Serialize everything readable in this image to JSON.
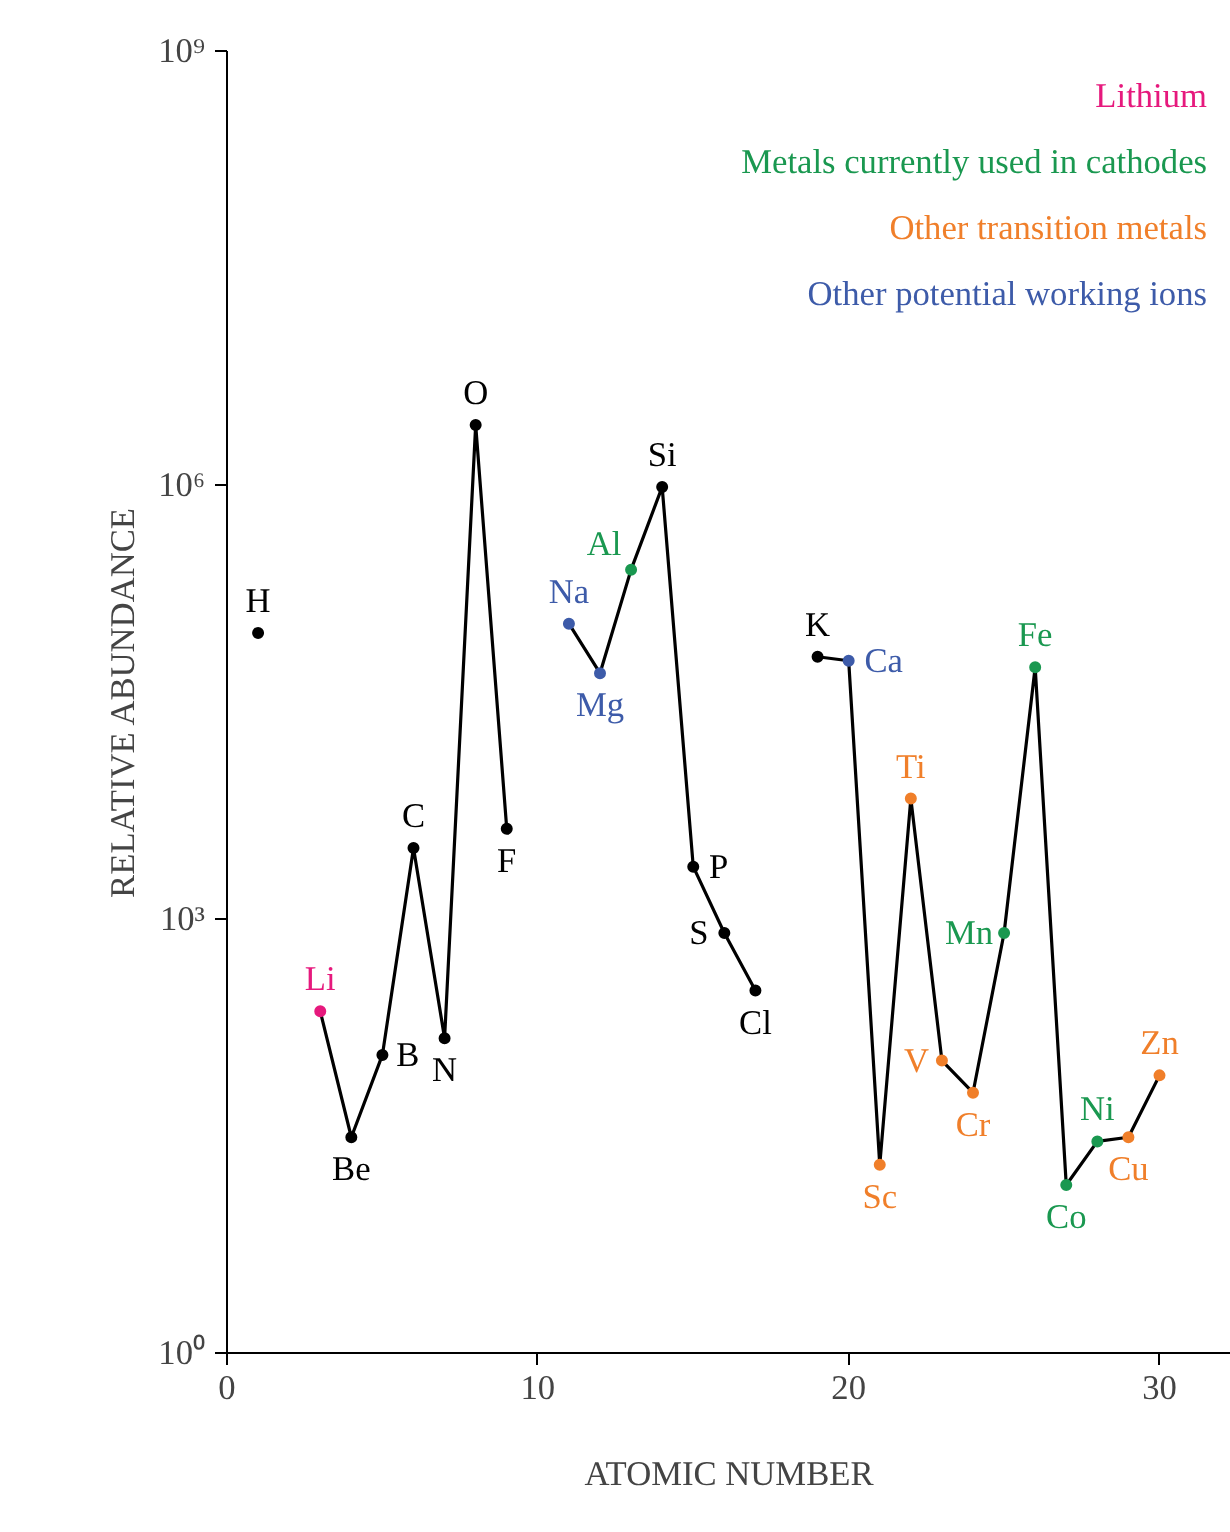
{
  "chart_data": {
    "type": "scatter",
    "xlabel": "ATOMIC NUMBER",
    "ylabel": "RELATIVE ABUNDANCE",
    "log": "y",
    "xlim": [
      0,
      32.3
    ],
    "ylim": [
      1,
      1000000000
    ],
    "xticks": [
      0,
      10,
      20,
      30
    ],
    "yticks": [
      {
        "value": 1,
        "label": "10⁰"
      },
      {
        "value": 1000,
        "label": "10³"
      },
      {
        "value": 1000000,
        "label": "10⁶"
      },
      {
        "value": 1000000000,
        "label": "10⁹"
      }
    ],
    "grid": false,
    "legend": "top right",
    "marker": "circle",
    "series": [
      {
        "type": "line",
        "color": "#000000",
        "marker": "none",
        "x": [
          3,
          4,
          5,
          6,
          7,
          8,
          9,
          10,
          11,
          12,
          13,
          14,
          15,
          16,
          17,
          18,
          19,
          20,
          21,
          22,
          23,
          24,
          25,
          26,
          27,
          28,
          29,
          30
        ],
        "values": [
          230,
          31,
          115,
          3100,
          150,
          2600000,
          4200,
          null,
          110000,
          50000,
          260000,
          970000,
          2300,
          800,
          320,
          null,
          65000,
          61000,
          20,
          6800,
          105,
          63,
          800,
          55000,
          14.5,
          29,
          31,
          83
        ]
      },
      {
        "color": "#000000",
        "x": [
          1,
          4,
          5,
          6,
          7,
          8,
          9,
          14,
          15,
          16,
          17,
          19
        ],
        "values": [
          95000,
          31,
          115,
          3100,
          150,
          2600000,
          4200,
          970000,
          2300,
          800,
          320,
          65000
        ]
      },
      {
        "name": "Lithium",
        "color": "#e6197d",
        "x": [
          3
        ],
        "values": [
          230
        ]
      },
      {
        "name": "Metals currently used in cathodes",
        "color": "#1a9850",
        "x": [
          13,
          25,
          26,
          27,
          28
        ],
        "values": [
          260000,
          800,
          55000,
          14.5,
          29
        ]
      },
      {
        "name": "Other transition metals",
        "color": "#f07f2a",
        "x": [
          21,
          22,
          23,
          24,
          29,
          30
        ],
        "values": [
          20,
          6800,
          105,
          63,
          31,
          83
        ]
      },
      {
        "name": "Other potential working ions",
        "color": "#3d5ba9",
        "x": [
          11,
          12,
          20
        ],
        "values": [
          110000,
          50000,
          61000
        ]
      }
    ],
    "annotations": [
      {
        "text": "H",
        "x": 1,
        "y": 95000
      },
      {
        "text": "Li",
        "x": 3,
        "y": 230
      },
      {
        "text": "Be",
        "x": 4,
        "y": 31
      },
      {
        "text": "B",
        "x": 5,
        "y": 115
      },
      {
        "text": "C",
        "x": 6,
        "y": 3100
      },
      {
        "text": "N",
        "x": 7,
        "y": 150
      },
      {
        "text": "O",
        "x": 8,
        "y": 2600000
      },
      {
        "text": "F",
        "x": 9,
        "y": 4200
      },
      {
        "text": "Na",
        "x": 11,
        "y": 110000
      },
      {
        "text": "Mg",
        "x": 12,
        "y": 50000
      },
      {
        "text": "Al",
        "x": 13,
        "y": 260000
      },
      {
        "text": "Si",
        "x": 14,
        "y": 970000
      },
      {
        "text": "P",
        "x": 15,
        "y": 2300
      },
      {
        "text": "S",
        "x": 16,
        "y": 800
      },
      {
        "text": "Cl",
        "x": 17,
        "y": 320
      },
      {
        "text": "K",
        "x": 19,
        "y": 65000
      },
      {
        "text": "Ca",
        "x": 20,
        "y": 61000
      },
      {
        "text": "Sc",
        "x": 21,
        "y": 20
      },
      {
        "text": "Ti",
        "x": 22,
        "y": 6800
      },
      {
        "text": "V",
        "x": 23,
        "y": 105
      },
      {
        "text": "Cr",
        "x": 24,
        "y": 63
      },
      {
        "text": "Mn",
        "x": 25,
        "y": 800
      },
      {
        "text": "Fe",
        "x": 26,
        "y": 55000
      },
      {
        "text": "Co",
        "x": 27,
        "y": 14.5
      },
      {
        "text": "Ni",
        "x": 28,
        "y": 29
      },
      {
        "text": "Cu",
        "x": 29,
        "y": 31
      },
      {
        "text": "Zn",
        "x": 30,
        "y": 83
      }
    ]
  }
}
